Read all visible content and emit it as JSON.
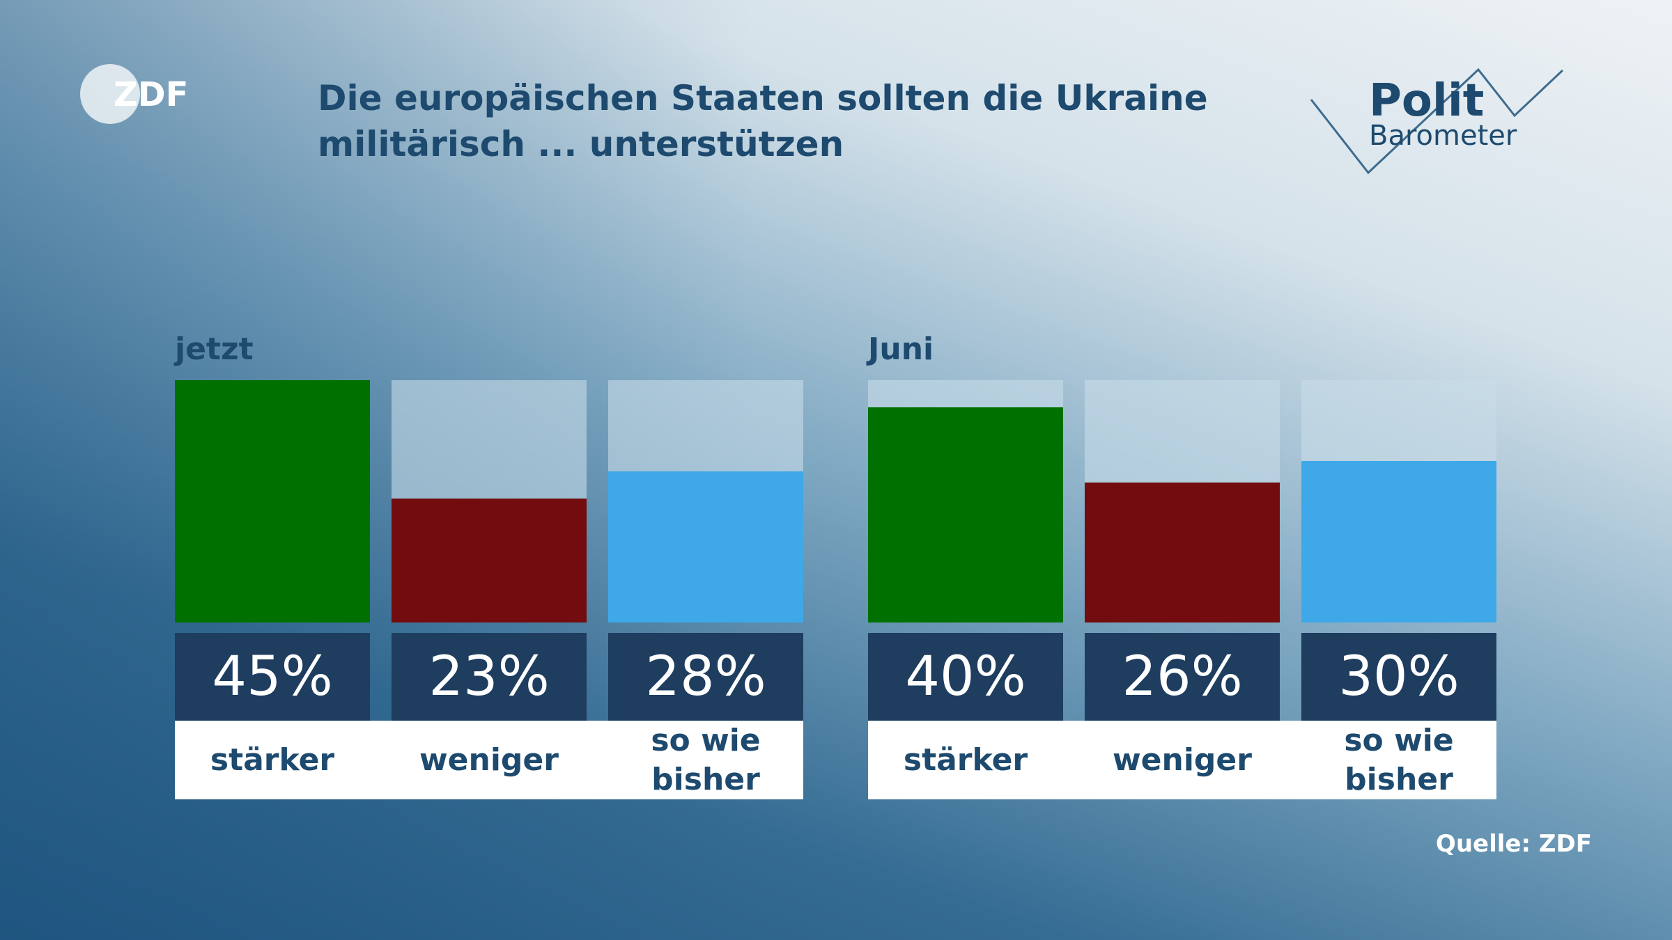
{
  "header": {
    "logo": "ZDF",
    "title_lines": [
      "Die europäischen Staaten sollten die Ukraine",
      "militärisch ... unterstützen"
    ],
    "brand": [
      "Polit",
      "Barometer"
    ]
  },
  "chart_data": [
    {
      "type": "bar",
      "title": "jetzt",
      "categories": [
        "stärker",
        "weniger",
        "so wie bisher"
      ],
      "values": [
        45,
        23,
        28
      ],
      "value_labels": [
        "45%",
        "23%",
        "28%"
      ],
      "colors": [
        "#007000",
        "#720c0e",
        "#3fa8e8"
      ],
      "ylim": [
        0,
        45
      ]
    },
    {
      "type": "bar",
      "title": "Juni",
      "categories": [
        "stärker",
        "weniger",
        "so wie bisher"
      ],
      "values": [
        40,
        26,
        30
      ],
      "value_labels": [
        "40%",
        "26%",
        "30%"
      ],
      "colors": [
        "#007000",
        "#720c0e",
        "#3fa8e8"
      ],
      "ylim": [
        0,
        45
      ]
    }
  ],
  "source": "Quelle: ZDF"
}
